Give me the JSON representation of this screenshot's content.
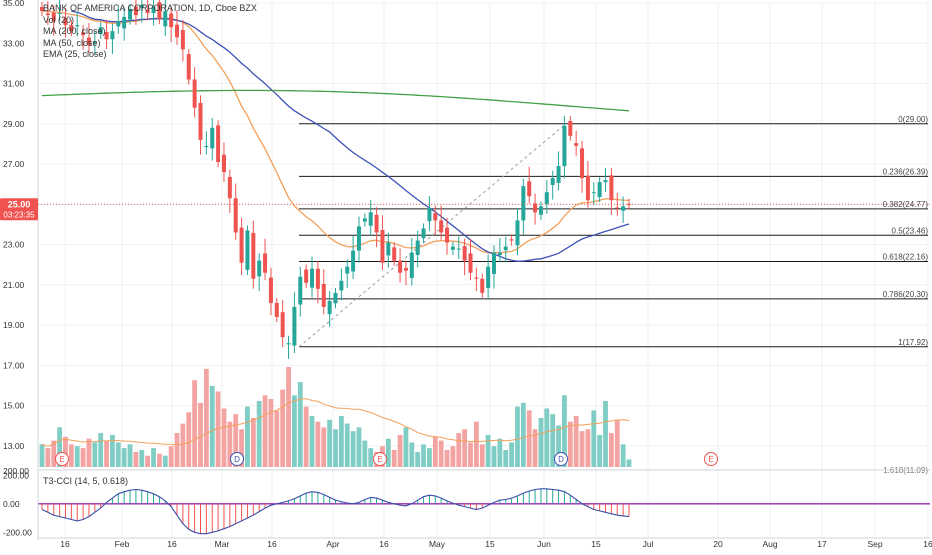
{
  "legend": {
    "title": "BANK OF AMERICA CORPORATION, 1D, Cboe BZX",
    "vol": "Vol (20)",
    "ma200": "MA (200, close)",
    "ma50": "MA (50, close)",
    "ema25": "EMA (25, close)"
  },
  "price_tag": {
    "price": "25.00",
    "countdown": "03:23:35"
  },
  "indicator_label": "T3-CCI (14, 5, 0.618)",
  "colors": {
    "up": "#26a69a",
    "down": "#ef5350",
    "vol_up": "#7fcdc4",
    "vol_down": "#f3a3a1",
    "ma200": "#43a047",
    "ma50": "#3f51b5",
    "ema25": "#f2a05a",
    "fib": "#1c1c1c",
    "cci": "#3a4fa8",
    "zero": "#9c27b0",
    "price_tag": "#ef5350"
  },
  "chart_data": {
    "type": "candlestick",
    "x_ticks": [
      "16",
      "Feb",
      "16",
      "Mar",
      "16",
      "Apr",
      "16",
      "May",
      "15",
      "Jun",
      "15",
      "Jul",
      "20",
      "Aug",
      "17",
      "Sep",
      "16"
    ],
    "y_ticks": [
      "35.00",
      "33.00",
      "31.00",
      "29.00",
      "27.00",
      "25.00",
      "23.00",
      "21.00",
      "19.00",
      "17.00",
      "15.00",
      "13.00"
    ],
    "ylim": [
      11.8,
      35.0
    ],
    "closes": [
      34.6,
      34.4,
      34.1,
      34.5,
      33.9,
      33.6,
      33.9,
      33.4,
      32.9,
      33.1,
      33.8,
      33.2,
      33.6,
      34.1,
      34.3,
      34.7,
      34.4,
      34.9,
      34.5,
      34.8,
      34.2,
      34.6,
      33.8,
      33.3,
      32.7,
      31.2,
      29.8,
      28.2,
      27.9,
      28.8,
      27.1,
      26.6,
      25.3,
      23.6,
      22.1,
      23.7,
      21.3,
      22.2,
      21.6,
      20.1,
      19.4,
      18.4,
      18.1,
      19.9,
      21.4,
      21.1,
      21.8,
      20.8,
      19.9,
      20.2,
      20.6,
      21.2,
      21.9,
      22.7,
      23.9,
      24.3,
      24.6,
      23.6,
      22.1,
      23.1,
      22.2,
      21.6,
      21.7,
      22.6,
      23.2,
      23.8,
      24.8,
      24.2,
      23.6,
      23.1,
      22.9,
      22.8,
      22.2,
      21.6,
      21.3,
      20.6,
      21.9,
      22.6,
      22.6,
      22.9,
      23.2,
      24.2,
      25.9,
      25.4,
      24.6,
      24.9,
      25.6,
      26.3,
      26.9,
      28.9,
      28.4,
      27.9,
      26.3,
      25.2,
      25.6,
      26.1,
      26.2,
      25.2,
      24.8,
      24.9,
      25.0
    ],
    "volumes": [
      13.0,
      12.8,
      13.2,
      13.9,
      13.4,
      13.0,
      12.9,
      12.8,
      13.3,
      13.1,
      13.6,
      13.2,
      13.5,
      13.1,
      12.8,
      13.0,
      12.6,
      12.7,
      12.4,
      12.8,
      12.5,
      12.4,
      12.9,
      13.6,
      14.1,
      14.7,
      16.4,
      15.2,
      17.0,
      16.1,
      15.8,
      14.9,
      14.2,
      14.6,
      13.8,
      15.0,
      14.4,
      15.3,
      15.6,
      15.4,
      14.8,
      15.9,
      17.1,
      15.6,
      16.3,
      15.0,
      14.5,
      14.2,
      13.9,
      14.3,
      13.8,
      14.5,
      14.1,
      13.7,
      13.9,
      13.2,
      12.8,
      12.6,
      12.9,
      13.3,
      12.7,
      13.5,
      13.9,
      13.1,
      12.6,
      13.0,
      12.8,
      13.4,
      13.2,
      12.7,
      12.9,
      13.6,
      13.8,
      13.1,
      14.2,
      13.0,
      13.5,
      12.9,
      13.3,
      12.7,
      13.1,
      15.0,
      15.2,
      14.8,
      13.8,
      14.4,
      14.9,
      14.6,
      14.0,
      15.6,
      14.2,
      14.5,
      13.7,
      13.8,
      14.8,
      13.5,
      15.3,
      13.6,
      14.3,
      13.0,
      12.2
    ],
    "volume_ylim": [
      11.8,
      18.0
    ],
    "cci": [
      -40,
      -60,
      -80,
      -90,
      -100,
      -110,
      -120,
      -110,
      -90,
      -60,
      -30,
      10,
      40,
      70,
      85,
      95,
      100,
      95,
      85,
      70,
      50,
      20,
      -20,
      -80,
      -140,
      -180,
      -200,
      -210,
      -210,
      -200,
      -190,
      -175,
      -160,
      -140,
      -120,
      -100,
      -80,
      -55,
      -30,
      -10,
      0,
      10,
      20,
      35,
      55,
      75,
      85,
      80,
      65,
      45,
      25,
      15,
      5,
      0,
      10,
      30,
      45,
      40,
      25,
      10,
      0,
      -10,
      -15,
      0,
      25,
      50,
      60,
      55,
      40,
      20,
      5,
      -10,
      -20,
      -30,
      -40,
      -30,
      -10,
      10,
      25,
      30,
      40,
      55,
      75,
      90,
      100,
      105,
      105,
      100,
      95,
      85,
      60,
      30,
      0,
      -20,
      -40,
      -50,
      -60,
      -70,
      -80,
      -85,
      -90
    ],
    "cci_ylim": [
      -240,
      230
    ],
    "cci_ticks": [
      "200.00",
      "0.00",
      "-200.00"
    ],
    "fibonacci": [
      {
        "label": "0(29.00)",
        "price": 29.0
      },
      {
        "label": "0.236(26.39)",
        "price": 26.39
      },
      {
        "label": "0.382(24.77)",
        "price": 24.77
      },
      {
        "label": "0.5(23.46)",
        "price": 23.46
      },
      {
        "label": "0.618(22.16)",
        "price": 22.16
      },
      {
        "label": "0.786(20.30)",
        "price": 20.3
      },
      {
        "label": "1(17.92)",
        "price": 17.92
      }
    ],
    "earnings_markers": [
      "E",
      "D",
      "E",
      "D",
      "E"
    ],
    "vol_axis_label": "200.00",
    "fib_cut_label": "1.618(11.09)"
  }
}
